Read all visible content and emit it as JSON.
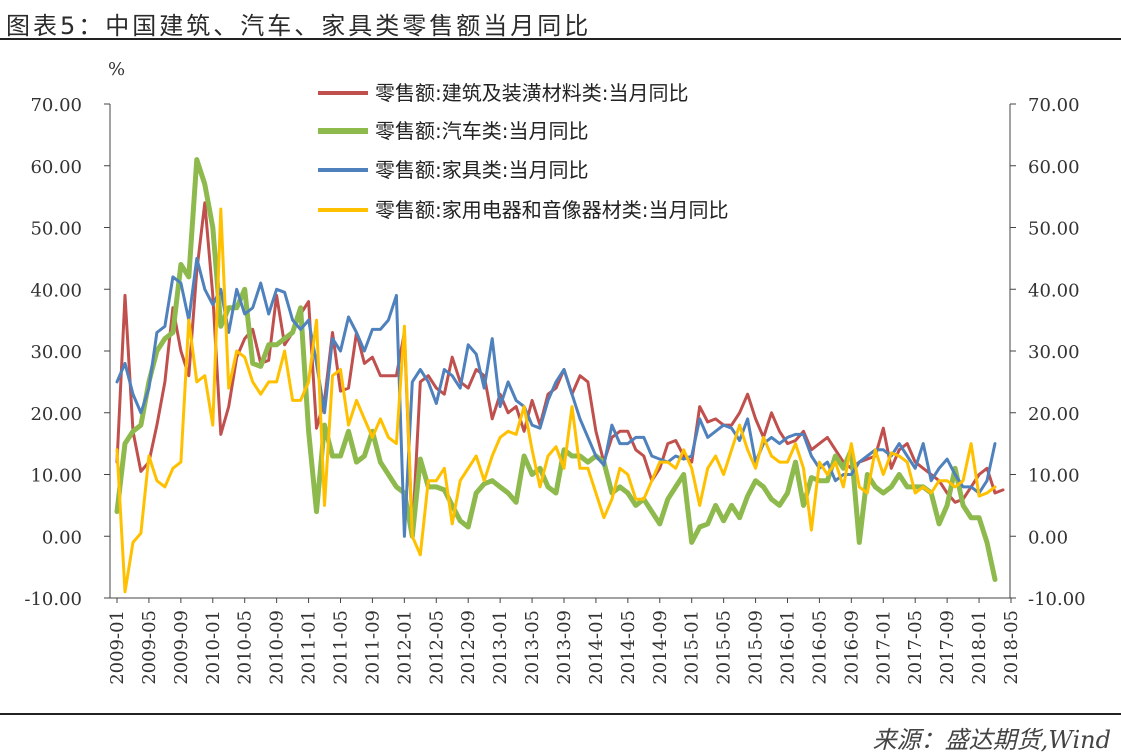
{
  "figure_title": "图表5：中国建筑、汽车、家具类零售额当月同比",
  "source_text": "来源：盛达期货,Wind",
  "chart_data": {
    "type": "line",
    "unit_label": "%",
    "ylim": [
      -10,
      70
    ],
    "yticks": [
      "70.00",
      "60.00",
      "50.00",
      "40.00",
      "30.00",
      "20.00",
      "10.00",
      "0.00",
      "-10.00"
    ],
    "ytick_values": [
      70,
      60,
      50,
      40,
      30,
      20,
      10,
      0,
      -10
    ],
    "xtick_labels": [
      "2009-01",
      "2009-05",
      "2009-09",
      "2010-01",
      "2010-05",
      "2010-09",
      "2011-01",
      "2011-05",
      "2011-09",
      "2012-01",
      "2012-05",
      "2012-09",
      "2013-01",
      "2013-05",
      "2013-09",
      "2014-01",
      "2014-05",
      "2014-09",
      "2015-01",
      "2015-05",
      "2015-09",
      "2016-01",
      "2016-05",
      "2016-09",
      "2017-01",
      "2017-05",
      "2017-09",
      "2018-01",
      "2018-05"
    ],
    "series": [
      {
        "name": "零售额:建筑及装潢材料类:当月同比",
        "color": "#c0504d",
        "width": 3,
        "values": [
          12,
          39,
          17,
          10.5,
          12,
          18,
          25,
          37,
          30,
          26,
          43,
          54,
          39,
          16.5,
          21,
          29,
          32,
          33.5,
          28,
          28.5,
          39,
          31,
          33,
          36,
          38,
          17.5,
          22,
          33,
          23.5,
          24,
          33,
          28,
          29,
          26,
          26,
          26,
          33,
          0,
          25,
          26,
          24,
          23,
          29,
          25,
          24,
          27,
          26,
          19,
          23,
          20,
          21,
          17,
          22,
          18,
          23,
          24,
          27,
          23,
          26,
          25,
          17,
          12,
          16,
          17,
          17,
          14,
          13,
          9,
          11,
          15,
          15.5,
          13,
          12,
          21,
          18.5,
          19,
          18,
          18,
          20,
          23,
          19,
          16,
          20,
          17,
          15,
          15.5,
          17,
          14,
          15,
          16,
          14,
          12,
          11,
          12,
          12.5,
          13,
          17.5,
          11,
          14,
          15,
          12,
          11,
          10,
          9,
          7,
          5.5,
          6,
          8,
          10,
          11,
          7,
          7.5
        ]
      },
      {
        "name": "零售额:汽车类:当月同比",
        "color": "#8db94d",
        "width": 5,
        "values": [
          4,
          15,
          17,
          18,
          25,
          30,
          32,
          33,
          44,
          42,
          61,
          57,
          50,
          34,
          37,
          37,
          40,
          28,
          27.5,
          31,
          31,
          32,
          33,
          37,
          17,
          4,
          18,
          13,
          13,
          17,
          12,
          13,
          17,
          12,
          10,
          8,
          7,
          0,
          12.5,
          8,
          8,
          7.5,
          5,
          2.5,
          1.5,
          7,
          8.5,
          9,
          8,
          7,
          5.5,
          13,
          10,
          11,
          8,
          7,
          14,
          13,
          13,
          12,
          13,
          12,
          7,
          8,
          7,
          5,
          6,
          4,
          2,
          6,
          8,
          10,
          -1,
          1.5,
          2,
          5,
          2.5,
          5,
          3,
          6.5,
          9,
          8,
          6,
          5,
          7,
          12,
          5,
          9.5,
          9,
          9,
          13,
          11,
          14,
          -1,
          10,
          8,
          7,
          8,
          10,
          8,
          8,
          8,
          7,
          2,
          5,
          11,
          5,
          3,
          3,
          -1,
          -7
        ]
      },
      {
        "name": "零售额:家具类:当月同比",
        "color": "#4f81bd",
        "width": 3,
        "values": [
          25,
          28,
          23,
          20,
          24,
          33,
          34,
          42,
          41,
          35,
          45,
          40,
          37.5,
          40,
          33,
          40,
          36,
          37,
          41,
          36,
          40,
          39.5,
          35,
          33.5,
          35,
          28,
          20,
          32,
          30,
          35.5,
          33,
          30,
          33.5,
          33.5,
          35,
          39,
          0,
          25,
          27,
          25,
          21.5,
          27,
          26,
          24,
          31,
          29.5,
          24,
          32,
          21,
          25,
          22,
          21,
          18,
          17.5,
          22,
          25,
          27,
          23,
          19,
          16,
          13,
          11.5,
          18,
          15,
          15,
          16,
          16,
          13,
          12.5,
          12,
          13,
          12.5,
          13,
          19,
          16,
          17,
          18,
          17.5,
          15.5,
          19,
          12,
          15,
          16,
          15,
          16,
          16.5,
          16.5,
          13,
          11,
          12,
          9,
          10,
          10,
          12,
          13,
          14,
          14,
          13,
          15,
          13,
          11,
          15,
          9,
          11,
          12.5,
          10,
          8,
          8,
          7,
          9,
          15
        ]
      },
      {
        "name": "零售额:家用电器和音像器材类:当月同比",
        "color": "#ffc000",
        "width": 3,
        "values": [
          14,
          -9,
          -1,
          0.5,
          13,
          9,
          8,
          11,
          12,
          35,
          25,
          26,
          18,
          53,
          24,
          30,
          29,
          25,
          23,
          25,
          25,
          30,
          22,
          22,
          25,
          35,
          5,
          26,
          27,
          18,
          22,
          19,
          16,
          19,
          16,
          15,
          34,
          0,
          -3,
          9,
          9,
          11,
          2,
          9,
          11,
          13,
          9,
          13,
          16,
          17,
          16.5,
          21,
          14,
          8,
          13,
          14.5,
          11,
          21,
          11,
          11,
          7,
          3,
          6,
          11,
          10,
          6,
          6,
          9,
          12,
          12,
          11,
          14,
          11,
          5,
          11,
          13,
          10,
          14,
          18,
          14,
          11,
          16,
          13,
          12,
          12,
          15,
          11,
          1,
          12,
          10,
          12,
          8,
          15,
          8,
          7,
          14,
          10,
          13.5,
          13,
          12,
          7,
          8,
          7,
          9,
          9,
          8,
          9,
          15,
          6.5,
          7,
          8
        ]
      }
    ]
  }
}
